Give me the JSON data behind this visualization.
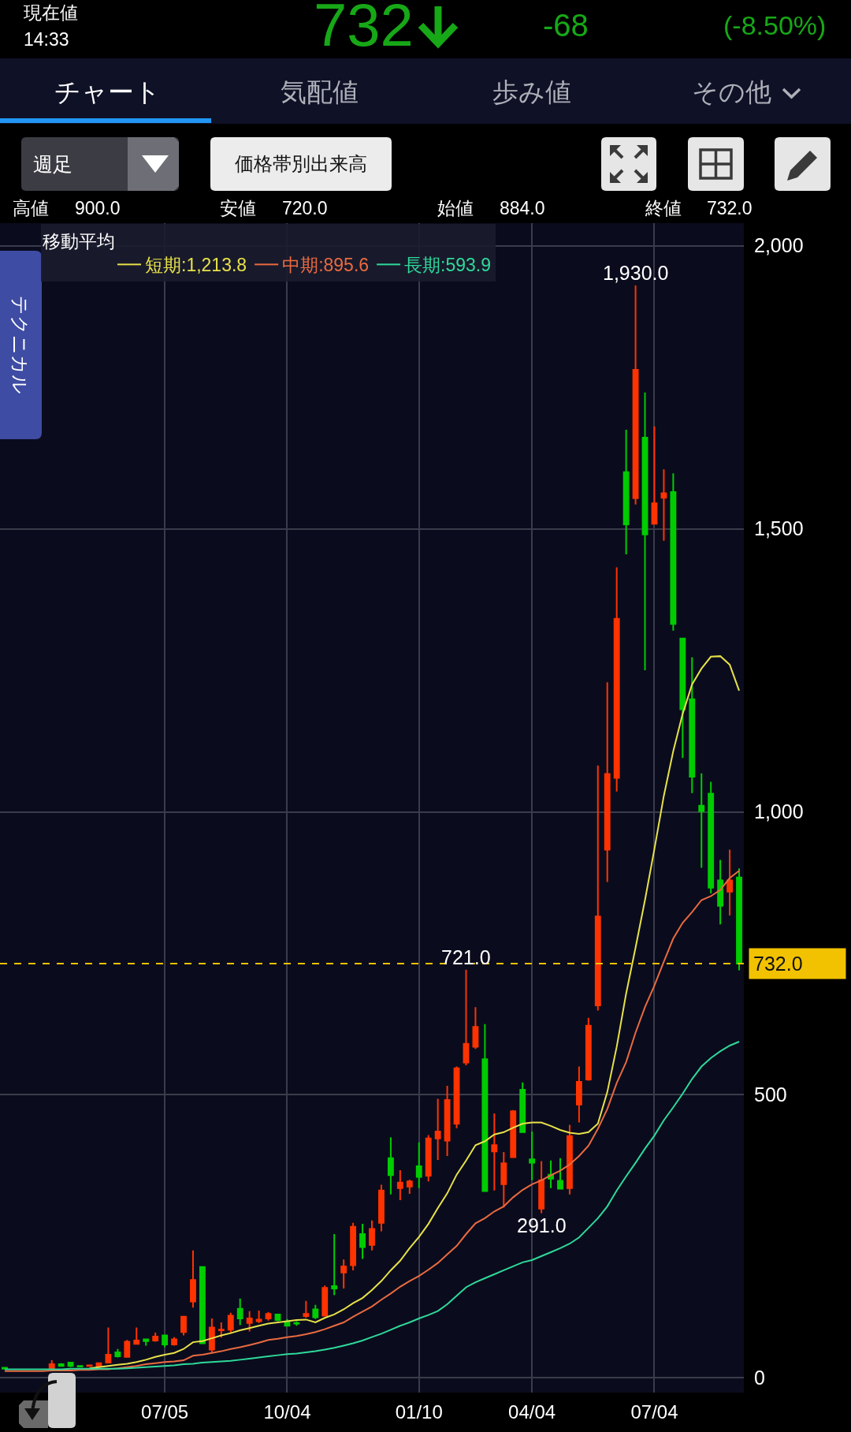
{
  "chart_data": {
    "type": "candlestick",
    "categories": [
      null,
      null,
      null,
      null,
      null,
      null,
      null,
      null,
      null,
      null,
      null,
      null,
      null,
      null,
      null,
      null,
      null,
      "07/05",
      null,
      null,
      null,
      null,
      null,
      null,
      null,
      null,
      null,
      null,
      null,
      null,
      "10/04",
      null,
      null,
      null,
      null,
      null,
      null,
      null,
      null,
      null,
      null,
      null,
      null,
      null,
      "01/10",
      null,
      null,
      null,
      null,
      null,
      null,
      null,
      null,
      null,
      null,
      null,
      "04/04",
      null,
      null,
      null,
      null,
      null,
      null,
      null,
      null,
      null,
      null,
      null,
      null,
      "07/04",
      null,
      null,
      null,
      null,
      null,
      null,
      null,
      null,
      null
    ],
    "series": [
      {
        "type": "line",
        "name": "短期:1,213.8",
        "color": "#e8e14a",
        "values": [
          null,
          null,
          null,
          null,
          null,
          null,
          null,
          null,
          null,
          17,
          19,
          21,
          23,
          25,
          28,
          32,
          37,
          41,
          44,
          51,
          63,
          65,
          70,
          75,
          79,
          84,
          88,
          92,
          96,
          98,
          100,
          102,
          103,
          98,
          106,
          112,
          121,
          132,
          141,
          155,
          171,
          190,
          207,
          229,
          249,
          272,
          300,
          326,
          359,
          384,
          411,
          418,
          430,
          434,
          442,
          449,
          451,
          451,
          445,
          438,
          433,
          431,
          434,
          449,
          505,
          585,
          679,
          760,
          844,
          934,
          1028,
          1107,
          1173,
          1225,
          1253,
          1274,
          1275,
          1260,
          1214
        ]
      },
      {
        "type": "line",
        "name": "中期:895.6",
        "color": "#ea6a40",
        "values": [
          12,
          12,
          12,
          12,
          12,
          13,
          13,
          13,
          14,
          14,
          15,
          15,
          17,
          19,
          21,
          24,
          26,
          28,
          29,
          31,
          39,
          41,
          44,
          47,
          51,
          54,
          58,
          62,
          67,
          69,
          72,
          74,
          77,
          81,
          86,
          92,
          98,
          108,
          117,
          126,
          138,
          149,
          161,
          171,
          180,
          191,
          203,
          218,
          233,
          254,
          273,
          282,
          294,
          303,
          319,
          332,
          342,
          349,
          358,
          366,
          377,
          392,
          410,
          440,
          475,
          521,
          558,
          610,
          655,
          693,
          735,
          776,
          804,
          823,
          844,
          851,
          862,
          883,
          896
        ]
      },
      {
        "type": "line",
        "name": "長期:593.9",
        "color": "#2fd99a",
        "values": [
          15,
          15,
          15,
          15,
          15,
          15,
          15,
          16,
          16,
          16,
          16,
          16,
          16,
          17,
          18,
          19,
          20,
          21,
          22,
          24,
          25,
          27,
          28,
          29,
          30,
          32,
          34,
          36,
          38,
          40,
          42,
          43,
          45,
          47,
          50,
          53,
          57,
          61,
          66,
          72,
          78,
          85,
          92,
          98,
          105,
          111,
          118,
          130,
          145,
          160,
          169,
          176,
          183,
          190,
          197,
          204,
          208,
          215,
          222,
          229,
          237,
          248,
          265,
          282,
          303,
          331,
          356,
          380,
          405,
          428,
          455,
          478,
          502,
          528,
          550,
          565,
          577,
          587,
          594
        ]
      },
      {
        "ohlc": [
          [
            18,
            19,
            15,
            16
          ],
          null,
          null,
          null,
          null,
          [
            16,
            31,
            16,
            24
          ],
          [
            24,
            26,
            20,
            21
          ],
          [
            27,
            28,
            19,
            21
          ],
          [
            21,
            21,
            20,
            20
          ],
          [
            21,
            22,
            21,
            22
          ],
          [
            21,
            27,
            20,
            26
          ],
          [
            27,
            89,
            26,
            41
          ],
          [
            45,
            51,
            36,
            38
          ],
          [
            37,
            67,
            37,
            64
          ],
          [
            60,
            89,
            59,
            66
          ],
          [
            68,
            68,
            57,
            65
          ],
          [
            66,
            80,
            64,
            73
          ],
          [
            75,
            75,
            54,
            59
          ],
          [
            59,
            72,
            57,
            68
          ],
          [
            81,
            108,
            75,
            108
          ],
          [
            135,
            225,
            124,
            173
          ],
          [
            196,
            196,
            61,
            61
          ],
          [
            50,
            105,
            45,
            89
          ],
          [
            84,
            98,
            71,
            85
          ],
          [
            85,
            115,
            79,
            110
          ],
          [
            122,
            140,
            93,
            105
          ],
          [
            97,
            118,
            82,
            105
          ],
          [
            100,
            119,
            97,
            103
          ],
          [
            105,
            116,
            101,
            113
          ],
          [
            112,
            112,
            100,
            102
          ],
          [
            98,
            104,
            91,
            92
          ],
          [
            97,
            100,
            92,
            96
          ],
          [
            109,
            136,
            106,
            113
          ],
          [
            121,
            129,
            104,
            107
          ],
          [
            110,
            163,
            109,
            159
          ],
          [
            162,
            254,
            146,
            158
          ],
          [
            186,
            209,
            158,
            197
          ],
          [
            199,
            274,
            190,
            267
          ],
          [
            254,
            272,
            210,
            231
          ],
          [
            235,
            278,
            225,
            263
          ],
          [
            274,
            341,
            259,
            331
          ],
          [
            388,
            425,
            324,
            358
          ],
          [
            335,
            367,
            314,
            345
          ],
          [
            338,
            350,
            325,
            347
          ],
          [
            374,
            416,
            335,
            355
          ],
          [
            357,
            429,
            347,
            423
          ],
          [
            423,
            493,
            385,
            435
          ],
          [
            419,
            516,
            392,
            491
          ],
          [
            449,
            550,
            441,
            547
          ],
          [
            557,
            721,
            552,
            590
          ],
          [
            585,
            655,
            581,
            620
          ],
          [
            563,
            625,
            330,
            330
          ],
          [
            400,
            467,
            331,
            411
          ],
          [
            342,
            399,
            301,
            379
          ],
          [
            390,
            473,
            390,
            471
          ],
          [
            509,
            522,
            433,
            434
          ],
          [
            386,
            435,
            349,
            380
          ],
          [
            299,
            383,
            291,
            349
          ],
          [
            359,
            384,
            335,
            352
          ],
          [
            348,
            388,
            334,
            334
          ],
          [
            335,
            447,
            324,
            427
          ],
          [
            483,
            550,
            451,
            523
          ],
          [
            527,
            636,
            525,
            622
          ],
          [
            658,
            1082,
            649,
            815
          ],
          [
            933,
            1229,
            876,
            1067
          ],
          [
            1060,
            1432,
            1036,
            1341
          ],
          [
            1600,
            1675,
            1455,
            1508
          ],
          [
            1554,
            1930,
            1543,
            1781
          ],
          [
            1661,
            1741,
            1250,
            1490
          ],
          [
            1509,
            1681,
            1509,
            1545
          ],
          [
            1555,
            1605,
            1479,
            1563
          ],
          [
            1565,
            1598,
            1320,
            1332
          ],
          [
            1306,
            1306,
            1095,
            1181
          ],
          [
            1199,
            1273,
            1033,
            1062
          ],
          [
            1011,
            1068,
            901,
            1001
          ],
          [
            1032,
            1053,
            856,
            866
          ],
          [
            879,
            915,
            801,
            834
          ],
          [
            859,
            933,
            817,
            879
          ],
          [
            884,
            900,
            720,
            732
          ]
        ],
        "colors": [
          "#00cc00",
          null,
          null,
          null,
          null,
          "#ff3300",
          "#00cc00",
          "#00cc00",
          "#00cc00",
          "#ff3300",
          "#ff3300",
          "#ff3300",
          "#00cc00",
          "#ff3300",
          "#ff3300",
          "#00cc00",
          "#ff3300",
          "#00cc00",
          "#ff3300",
          "#ff3300",
          "#ff3300",
          "#00cc00",
          "#ff3300",
          "#ff3300",
          "#ff3300",
          "#00cc00",
          "#ff3300",
          "#ff3300",
          "#ff3300",
          "#00cc00",
          "#00cc00",
          "#00cc00",
          "#ff3300",
          "#00cc00",
          "#ff3300",
          "#00cc00",
          "#ff3300",
          "#ff3300",
          "#00cc00",
          "#ff3300",
          "#ff3300",
          "#00cc00",
          "#ff3300",
          "#ff3300",
          "#00cc00",
          "#ff3300",
          "#ff3300",
          "#ff3300",
          "#ff3300",
          "#ff3300",
          "#ff3300",
          "#00cc00",
          "#ff3300",
          "#ff3300",
          "#ff3300",
          "#00cc00",
          "#00cc00",
          "#ff3300",
          "#00cc00",
          "#00cc00",
          "#ff3300",
          "#ff3300",
          "#ff3300",
          "#ff3300",
          "#ff3300",
          "#ff3300",
          "#00cc00",
          "#ff3300",
          "#00cc00",
          "#ff3300",
          "#ff3300",
          "#00cc00",
          "#00cc00",
          "#00cc00",
          "#00cc00",
          "#00cc00",
          "#00cc00",
          "#ff3300",
          "#00cc00"
        ]
      }
    ],
    "ylim": [
      -26,
      2040
    ],
    "yticks": [
      0,
      500,
      {
        "value": 1000,
        "label": "1,000"
      },
      {
        "value": 1500,
        "label": "1,500"
      },
      {
        "value": 2000,
        "label": "2,000"
      }
    ],
    "grid": true,
    "legend": "top left",
    "legend_title": "移動平均",
    "ref_lines": [
      {
        "axis": "y",
        "value": 732,
        "label": "732.0",
        "color": "#f2c200",
        "line_style": "dashed"
      }
    ],
    "annotations": [
      "現在値",
      "14:33",
      "732",
      "-68",
      "(-8.50%)",
      "チャート",
      "気配値",
      "歩み値",
      "その他",
      "週足",
      "価格帯別出来高",
      "高値",
      "900.0",
      "安値",
      "720.0",
      "始値",
      "884.0",
      "終値",
      "732.0",
      "テクニカル",
      {
        "text": "721.0",
        "y": 721
      },
      {
        "text": "1,930.0",
        "y": 1930
      },
      {
        "text": "291.0",
        "y": 291
      }
    ]
  }
}
